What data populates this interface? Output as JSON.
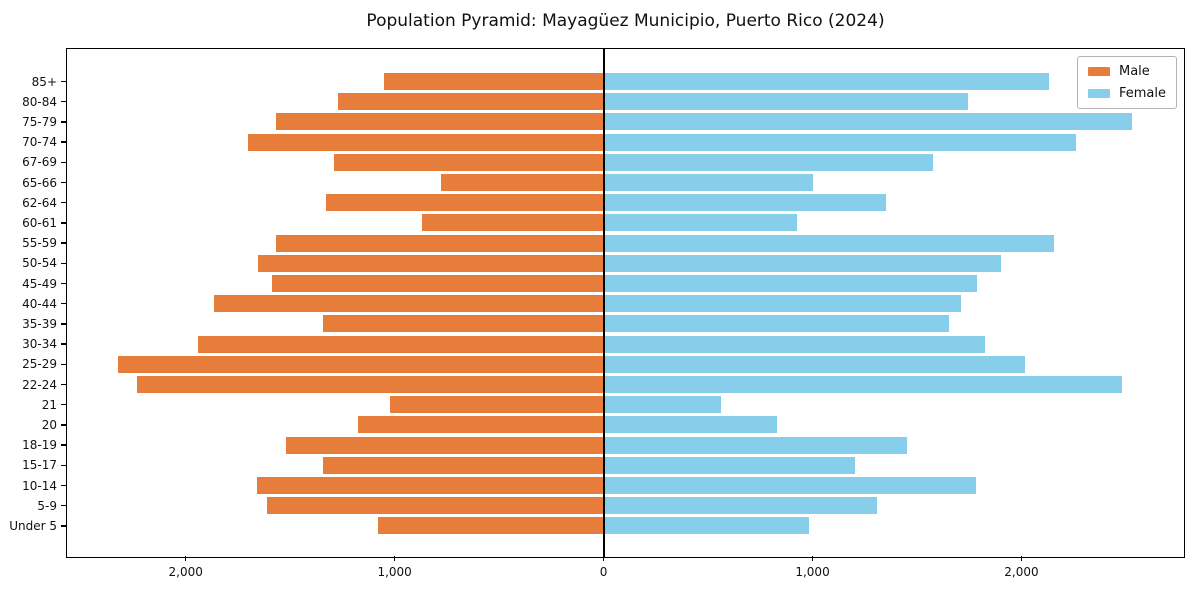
{
  "chart_data": {
    "type": "bar",
    "variant": "population-pyramid",
    "title": "Population Pyramid: Mayagüez Municipio, Puerto Rico (2024)",
    "categories": [
      "85+",
      "80-84",
      "75-79",
      "70-74",
      "67-69",
      "65-66",
      "62-64",
      "60-61",
      "55-59",
      "50-54",
      "45-49",
      "40-44",
      "35-39",
      "30-34",
      "25-29",
      "22-24",
      "21",
      "20",
      "18-19",
      "15-17",
      "10-14",
      "5-9",
      "Under 5"
    ],
    "series": [
      {
        "name": "Male",
        "side": "left",
        "color": "#e67d3b",
        "values": [
          1050,
          1270,
          1570,
          1700,
          1290,
          780,
          1330,
          870,
          1570,
          1655,
          1585,
          1865,
          1345,
          1940,
          2325,
          2235,
          1020,
          1175,
          1520,
          1345,
          1660,
          1610,
          1080
        ]
      },
      {
        "name": "Female",
        "side": "right",
        "color": "#87ceeb",
        "values": [
          2130,
          1745,
          2530,
          2260,
          1575,
          1000,
          1350,
          925,
          2155,
          1900,
          1785,
          1710,
          1655,
          1825,
          2015,
          2480,
          560,
          830,
          1450,
          1205,
          1780,
          1310,
          985
        ]
      }
    ],
    "xlabel": "",
    "ylabel": "",
    "xlim": [
      -2568,
      2773
    ],
    "x_ticks": [
      {
        "value": -2000,
        "label": "2,000"
      },
      {
        "value": -1000,
        "label": "1,000"
      },
      {
        "value": 0,
        "label": "0"
      },
      {
        "value": 1000,
        "label": "1,000"
      },
      {
        "value": 2000,
        "label": "2,000"
      }
    ],
    "grid": false,
    "zero_line": true,
    "legend_position": "upper right",
    "axis_color": "#000000",
    "background_color": "#ffffff"
  }
}
